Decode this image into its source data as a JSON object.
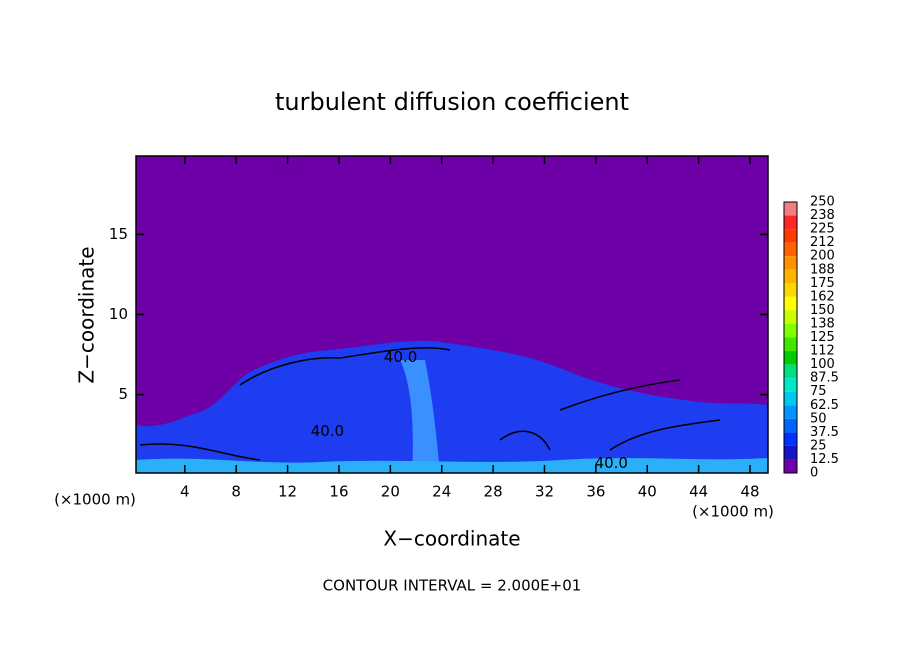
{
  "chart_data": {
    "type": "contour",
    "title": "turbulent diffusion coefficient",
    "x_label": "X−coordinate",
    "y_label": "Z−coordinate",
    "x_unit": "(×1000 m)",
    "footer": "CONTOUR INTERVAL = 2.000E+01",
    "xlim": [
      0.2,
      49.4
    ],
    "ylim": [
      0.1,
      19.9
    ],
    "xticks": [
      4,
      8,
      12,
      16,
      20,
      24,
      28,
      32,
      36,
      40,
      44,
      48
    ],
    "yticks": [
      5,
      10,
      15
    ],
    "contour_labels": [
      {
        "text": "40.0",
        "x": 20.8,
        "z": 7.3
      },
      {
        "text": "40.0",
        "x": 15.1,
        "z": 2.7
      },
      {
        "text": "40.0",
        "x": 37.2,
        "z": 0.7
      }
    ],
    "colorbar": {
      "levels": [
        250,
        238,
        225,
        212,
        200,
        188,
        175,
        162,
        150,
        138,
        125,
        112,
        100,
        87.5,
        75,
        62.5,
        50,
        37.5,
        25,
        12.5,
        0
      ],
      "colors": [
        "#f08080",
        "#ff2828",
        "#ff3c00",
        "#ff6400",
        "#ff9000",
        "#ffb400",
        "#ffd800",
        "#ffff00",
        "#c8ff00",
        "#80ff00",
        "#40e800",
        "#00cc00",
        "#00e080",
        "#00e8c8",
        "#00c8f0",
        "#0096ff",
        "#0064ff",
        "#0032ff",
        "#1414c8",
        "#6e00a8"
      ]
    }
  }
}
